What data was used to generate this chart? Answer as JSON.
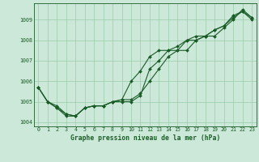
{
  "xlabel": "Graphe pression niveau de la mer (hPa)",
  "background_color": "#cce8d8",
  "grid_color": "#99ccaa",
  "line_color": "#1a5c28",
  "ylim": [
    1003.8,
    1009.8
  ],
  "xlim": [
    -0.5,
    23.5
  ],
  "yticks": [
    1004,
    1005,
    1006,
    1007,
    1008,
    1009
  ],
  "xticks": [
    0,
    1,
    2,
    3,
    4,
    5,
    6,
    7,
    8,
    9,
    10,
    11,
    12,
    13,
    14,
    15,
    16,
    17,
    18,
    19,
    20,
    21,
    22,
    23
  ],
  "series1": [
    1005.7,
    1005.0,
    1004.7,
    1004.4,
    1004.3,
    1004.7,
    1004.8,
    1004.8,
    1005.0,
    1005.1,
    1005.1,
    1005.4,
    1006.0,
    1006.6,
    1007.2,
    1007.5,
    1007.5,
    1008.0,
    1008.2,
    1008.2,
    1008.6,
    1009.0,
    1009.5,
    1009.1
  ],
  "series2": [
    1005.7,
    1005.0,
    1004.7,
    1004.3,
    1004.3,
    1004.7,
    1004.8,
    1004.8,
    1005.0,
    1005.1,
    1006.0,
    1006.5,
    1007.2,
    1007.5,
    1007.5,
    1007.7,
    1008.0,
    1008.0,
    1008.2,
    1008.5,
    1008.7,
    1009.2,
    1009.4,
    1009.1
  ],
  "series3": [
    1005.7,
    1005.0,
    1004.8,
    1004.4,
    1004.3,
    1004.7,
    1004.8,
    1004.8,
    1005.0,
    1005.0,
    1005.0,
    1005.3,
    1006.6,
    1007.0,
    1007.5,
    1007.5,
    1008.0,
    1008.2,
    1008.2,
    1008.5,
    1008.7,
    1009.1,
    1009.4,
    1009.0
  ],
  "xlabel_fontsize": 5.8,
  "tick_fontsize": 4.8,
  "marker_size": 2.0,
  "line_width": 0.8
}
